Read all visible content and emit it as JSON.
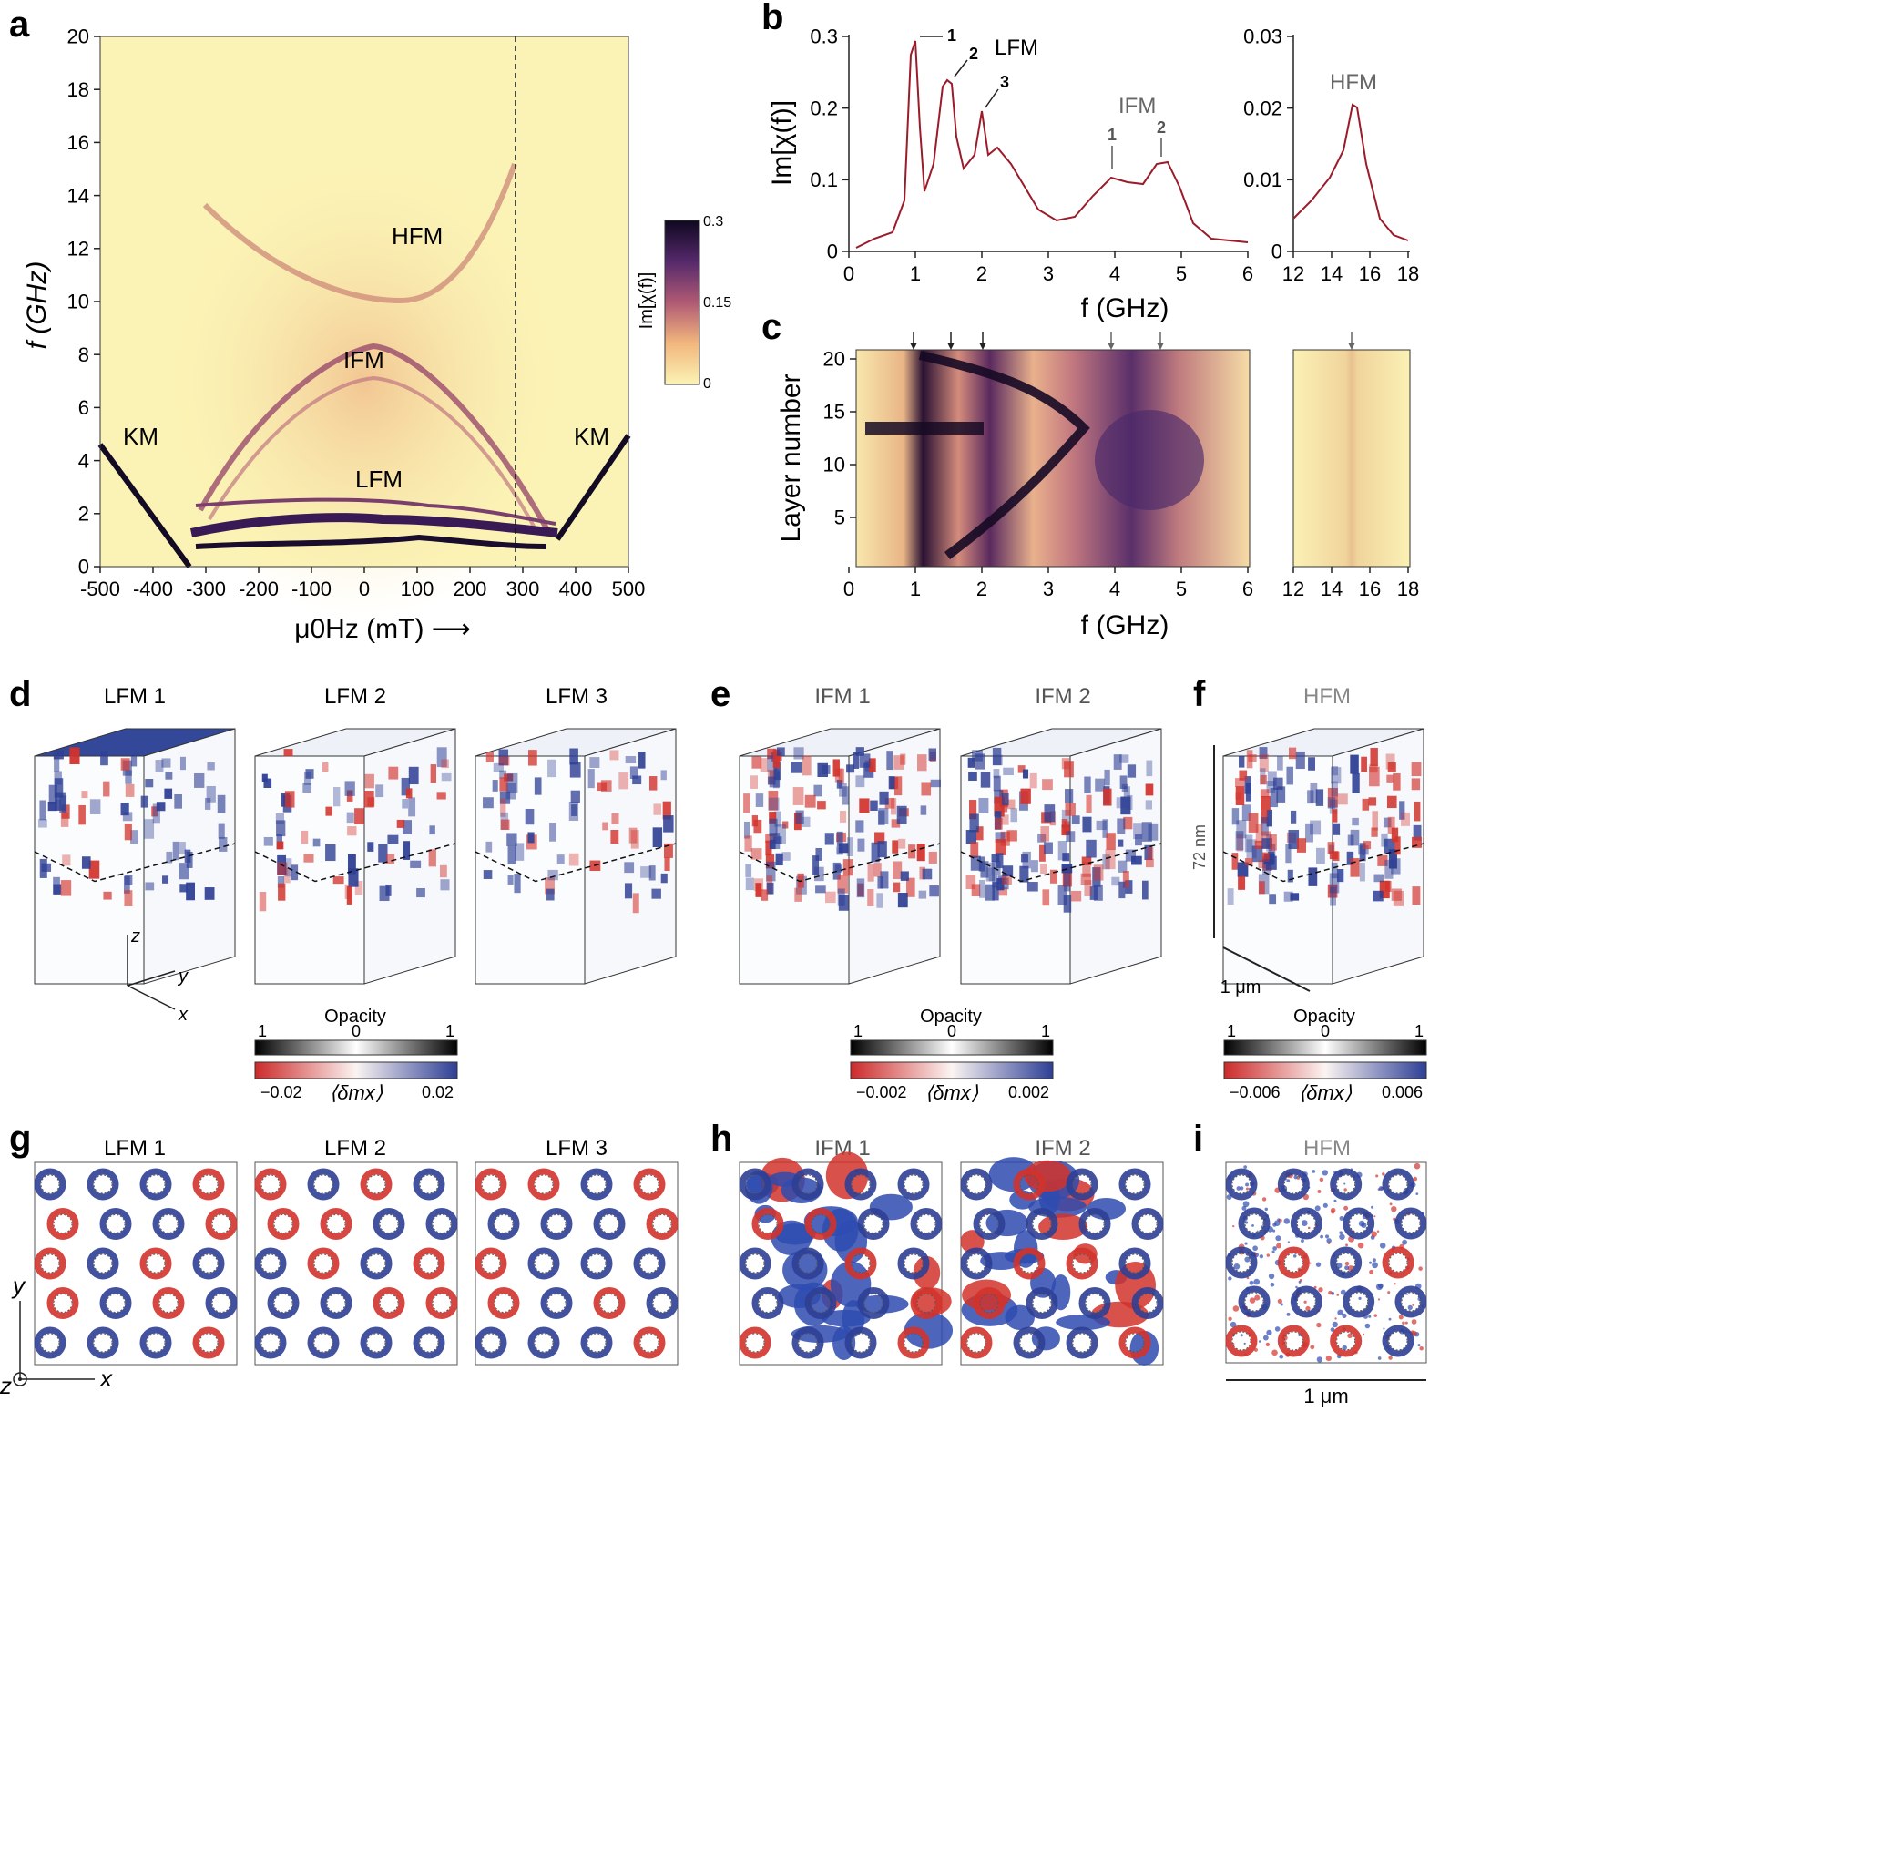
{
  "panels": {
    "a": {
      "letter": "a",
      "ylabel": "f (GHz)",
      "xlabel": "μ0Hz (mT) ⟶",
      "yticks": [
        "0",
        "2",
        "4",
        "6",
        "8",
        "10",
        "12",
        "14",
        "16",
        "18",
        "20"
      ],
      "xticks": [
        "-500",
        "-400",
        "-300",
        "-200",
        "-100",
        "0",
        "100",
        "200",
        "300",
        "400",
        "500"
      ],
      "labels": {
        "km_left": "KM",
        "km_right": "KM",
        "hfm": "HFM",
        "ifm": "IFM",
        "lfm": "LFM"
      },
      "colorbar": {
        "label": "Im[χ(f)]",
        "max": "0.3",
        "mid": "0.15",
        "min": "0"
      }
    },
    "b": {
      "letter": "b",
      "ylabel": "Im[χ(f)]",
      "xlabel": "f (GHz)",
      "left_yticks": [
        "0",
        "0.1",
        "0.2",
        "0.3"
      ],
      "left_xticks": [
        "0",
        "1",
        "2",
        "3",
        "4",
        "5",
        "6"
      ],
      "right_yticks": [
        "0",
        "0.01",
        "0.02",
        "0.03"
      ],
      "right_xticks": [
        "12",
        "14",
        "16",
        "18"
      ],
      "annotations": {
        "lfm": "LFM",
        "ifm": "IFM",
        "hfm": "HFM",
        "p1": "1",
        "p2": "2",
        "p3": "3",
        "i1": "1",
        "i2": "2"
      }
    },
    "c": {
      "letter": "c",
      "ylabel": "Layer number",
      "xlabel": "f (GHz)",
      "yticks": [
        "5",
        "10",
        "15",
        "20"
      ],
      "left_xticks": [
        "0",
        "1",
        "2",
        "3",
        "4",
        "5",
        "6"
      ],
      "right_xticks": [
        "12",
        "14",
        "16",
        "18"
      ]
    },
    "d": {
      "letter": "d",
      "titles": [
        "LFM 1",
        "LFM 2",
        "LFM 3"
      ],
      "axes": {
        "z": "z",
        "y": "y",
        "x": "x"
      }
    },
    "e": {
      "letter": "e",
      "titles": [
        "IFM 1",
        "IFM 2"
      ]
    },
    "f": {
      "letter": "f",
      "title": "HFM",
      "height_label": "72 nm",
      "width_label": "1 μm"
    },
    "g": {
      "letter": "g",
      "titles": [
        "LFM 1",
        "LFM 2",
        "LFM 3"
      ],
      "axes": {
        "y": "y",
        "x": "x",
        "z": "z"
      }
    },
    "h": {
      "letter": "h",
      "titles": [
        "IFM 1",
        "IFM 2"
      ]
    },
    "i": {
      "letter": "i",
      "title": "HFM",
      "scale_label": "1 μm"
    }
  },
  "colorbars": {
    "d": {
      "opacity_label": "Opacity",
      "op_left": "1",
      "op_mid": "0",
      "op_right": "1",
      "dm_min": "−0.02",
      "dm_label": "⟨δmx⟩",
      "dm_max": "0.02"
    },
    "e": {
      "opacity_label": "Opacity",
      "op_left": "1",
      "op_mid": "0",
      "op_right": "1",
      "dm_min": "−0.002",
      "dm_label": "⟨δmx⟩",
      "dm_max": "0.002"
    },
    "f": {
      "opacity_label": "Opacity",
      "op_left": "1",
      "op_mid": "0",
      "op_right": "1",
      "dm_min": "−0.006",
      "dm_label": "⟨δmx⟩",
      "dm_max": "0.006"
    }
  },
  "colors": {
    "curve": "#9b1b2a",
    "blue": "#2e3f94",
    "red": "#d2332c",
    "cream": "#fbf3b5",
    "dark": "#130a24"
  }
}
